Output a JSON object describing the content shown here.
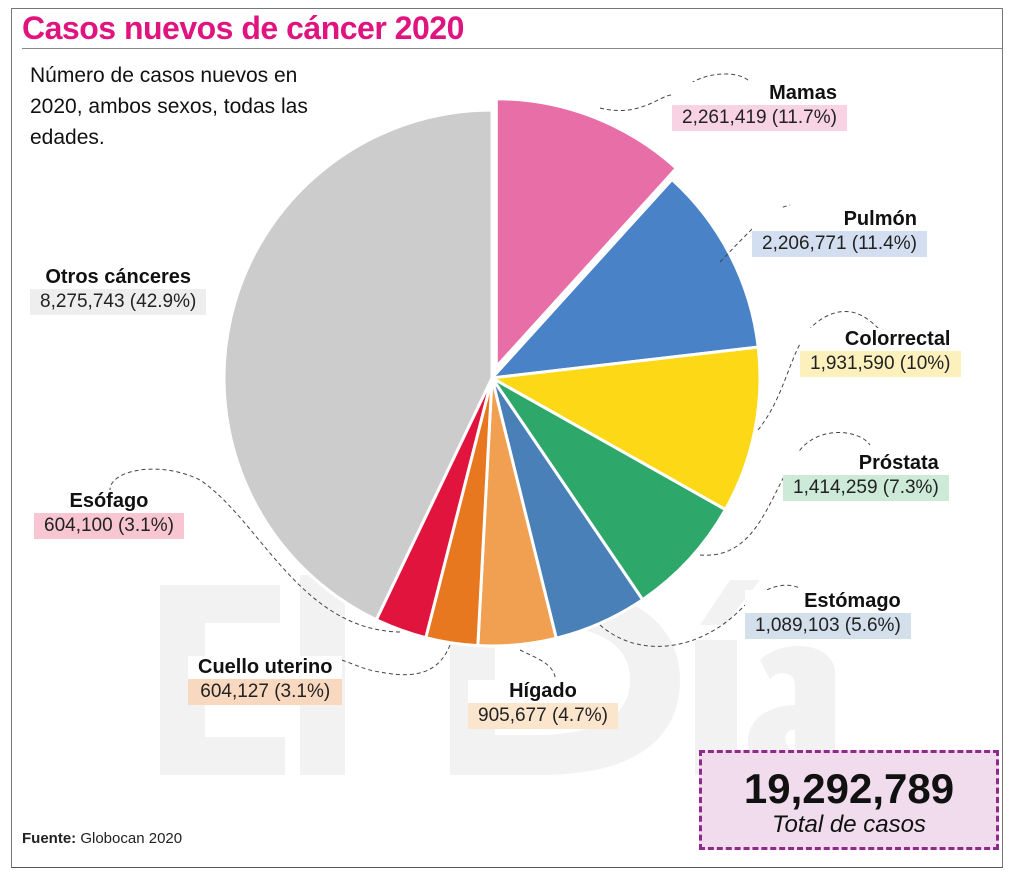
{
  "title": "Casos nuevos de cáncer 2020",
  "subtitle": "Número de casos nuevos en 2020, ambos sexos, todas las edades.",
  "watermark": "El Día",
  "source_label": "Fuente:",
  "source_value": "Globocan 2020",
  "total": {
    "value": "19,292,789",
    "caption": "Total de casos"
  },
  "chart_data": {
    "type": "pie",
    "title": "Casos nuevos de cáncer 2020",
    "start": "12 o'clock, clockwise",
    "exploded": "Mamas",
    "slices": [
      {
        "name": "Mamas",
        "value": 2261419,
        "label": "2,261,419 (11.7%)",
        "percent": 11.7,
        "color": "#e86ea8",
        "label_bg": "#f7d3e4"
      },
      {
        "name": "Pulmón",
        "value": 2206771,
        "label": "2,206,771 (11.4%)",
        "percent": 11.4,
        "color": "#4a82c8",
        "label_bg": "#d3dff0"
      },
      {
        "name": "Colorrectal",
        "value": 1931590,
        "label": "1,931,590 (10%)",
        "percent": 10,
        "color": "#fdd816",
        "label_bg": "#fcf1bd"
      },
      {
        "name": "Próstata",
        "value": 1414259,
        "label": "1,414,259 (7.3%)",
        "percent": 7.3,
        "color": "#2ea86a",
        "label_bg": "#cde9d8"
      },
      {
        "name": "Estómago",
        "value": 1089103,
        "label": "1,089,103 (5.6%)",
        "percent": 5.6,
        "color": "#4a80b8",
        "label_bg": "#d3dfea"
      },
      {
        "name": "Hígado",
        "value": 905677,
        "label": "905,677 (4.7%)",
        "percent": 4.7,
        "color": "#f0a050",
        "label_bg": "#fbe5cd"
      },
      {
        "name": "Cuello uterino",
        "value": 604127,
        "label": "604,127 (3.1%)",
        "percent": 3.1,
        "color": "#e87820",
        "label_bg": "#f8d9c0"
      },
      {
        "name": "Esófago",
        "value": 604100,
        "label": "604,100 (3.1%)",
        "percent": 3.1,
        "color": "#e0143c",
        "label_bg": "#f8c6d2"
      },
      {
        "name": "Otros cánceres",
        "value": 8275743,
        "label": "8,275,743 (42.9%)",
        "percent": 42.9,
        "color": "#cccccc",
        "label_bg": "#eeeeee"
      }
    ]
  }
}
